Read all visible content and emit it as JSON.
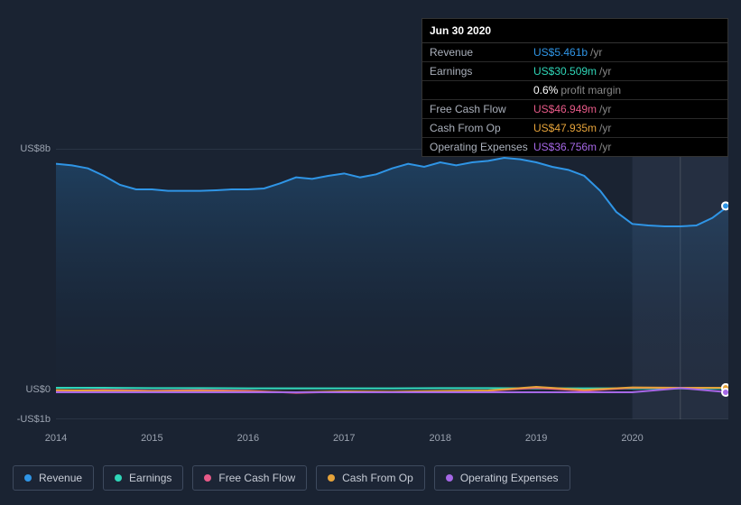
{
  "tooltip": {
    "date": "Jun 30 2020",
    "rows": [
      {
        "label": "Revenue",
        "value": "US$5.461b",
        "color": "#2f95e6",
        "suffix": "/yr"
      },
      {
        "label": "Earnings",
        "value": "US$30.509m",
        "color": "#2fd6b8",
        "suffix": "/yr"
      },
      {
        "label": "",
        "value": "0.6%",
        "color": "#ffffff",
        "suffix": "profit margin"
      },
      {
        "label": "Free Cash Flow",
        "value": "US$46.949m",
        "color": "#e85a88",
        "suffix": "/yr"
      },
      {
        "label": "Cash From Op",
        "value": "US$47.935m",
        "color": "#e6a33a",
        "suffix": "/yr"
      },
      {
        "label": "Operating Expenses",
        "value": "US$36.756m",
        "color": "#a567e6",
        "suffix": "/yr"
      }
    ]
  },
  "chart": {
    "type": "area-line",
    "background_color": "#1a2332",
    "grid_color": "#3a4555",
    "text_color": "#9ba3b0",
    "label_fontsize": 11,
    "x_years": [
      "2014",
      "2015",
      "2016",
      "2017",
      "2018",
      "2019",
      "2020"
    ],
    "x_range_months": 84,
    "y_axis": {
      "ticks": [
        {
          "label": "US$8b",
          "value": 8
        },
        {
          "label": "US$0",
          "value": 0
        },
        {
          "label": "-US$1b",
          "value": -1
        }
      ],
      "min": -1,
      "max": 8
    },
    "highlight_band": {
      "start_month": 72,
      "end_month": 84
    },
    "scrub_month": 78,
    "series": [
      {
        "name": "Revenue",
        "color": "#2f95e6",
        "area": true,
        "line_width": 2,
        "points": [
          [
            0,
            7.5
          ],
          [
            2,
            7.45
          ],
          [
            4,
            7.35
          ],
          [
            6,
            7.1
          ],
          [
            8,
            6.8
          ],
          [
            10,
            6.65
          ],
          [
            12,
            6.65
          ],
          [
            14,
            6.6
          ],
          [
            16,
            6.6
          ],
          [
            18,
            6.6
          ],
          [
            20,
            6.62
          ],
          [
            22,
            6.65
          ],
          [
            24,
            6.65
          ],
          [
            26,
            6.68
          ],
          [
            28,
            6.85
          ],
          [
            30,
            7.05
          ],
          [
            32,
            7.0
          ],
          [
            34,
            7.1
          ],
          [
            36,
            7.18
          ],
          [
            38,
            7.05
          ],
          [
            40,
            7.15
          ],
          [
            42,
            7.35
          ],
          [
            44,
            7.5
          ],
          [
            46,
            7.4
          ],
          [
            48,
            7.55
          ],
          [
            50,
            7.45
          ],
          [
            52,
            7.55
          ],
          [
            54,
            7.6
          ],
          [
            56,
            7.7
          ],
          [
            58,
            7.65
          ],
          [
            60,
            7.55
          ],
          [
            62,
            7.4
          ],
          [
            64,
            7.3
          ],
          [
            66,
            7.1
          ],
          [
            68,
            6.6
          ],
          [
            70,
            5.9
          ],
          [
            72,
            5.5
          ],
          [
            74,
            5.45
          ],
          [
            76,
            5.42
          ],
          [
            78,
            5.42
          ],
          [
            80,
            5.45
          ],
          [
            82,
            5.7
          ],
          [
            84,
            6.1
          ]
        ]
      },
      {
        "name": "Earnings",
        "color": "#2fd6b8",
        "area": false,
        "line_width": 2,
        "points": [
          [
            0,
            0.05
          ],
          [
            6,
            0.05
          ],
          [
            12,
            0.04
          ],
          [
            18,
            0.04
          ],
          [
            24,
            0.03
          ],
          [
            30,
            0.03
          ],
          [
            36,
            0.03
          ],
          [
            42,
            0.03
          ],
          [
            48,
            0.04
          ],
          [
            54,
            0.04
          ],
          [
            60,
            0.03
          ],
          [
            66,
            0.03
          ],
          [
            72,
            0.03
          ],
          [
            78,
            0.03
          ],
          [
            84,
            0.03
          ]
        ]
      },
      {
        "name": "Free Cash Flow",
        "color": "#e85a88",
        "area": false,
        "line_width": 2,
        "points": [
          [
            0,
            -0.05
          ],
          [
            6,
            -0.02
          ],
          [
            12,
            -0.05
          ],
          [
            18,
            -0.03
          ],
          [
            24,
            -0.05
          ],
          [
            30,
            -0.12
          ],
          [
            36,
            -0.08
          ],
          [
            42,
            -0.1
          ],
          [
            48,
            -0.08
          ],
          [
            54,
            -0.05
          ],
          [
            60,
            0.05
          ],
          [
            66,
            -0.05
          ],
          [
            72,
            0.05
          ],
          [
            78,
            0.05
          ],
          [
            84,
            0.05
          ]
        ]
      },
      {
        "name": "Cash From Op",
        "color": "#e6a33a",
        "area": false,
        "line_width": 2,
        "points": [
          [
            0,
            -0.03
          ],
          [
            6,
            -0.05
          ],
          [
            12,
            -0.07
          ],
          [
            18,
            -0.06
          ],
          [
            24,
            -0.08
          ],
          [
            30,
            -0.1
          ],
          [
            36,
            -0.07
          ],
          [
            42,
            -0.08
          ],
          [
            48,
            -0.06
          ],
          [
            54,
            -0.04
          ],
          [
            60,
            0.08
          ],
          [
            66,
            -0.02
          ],
          [
            72,
            0.06
          ],
          [
            78,
            0.05
          ],
          [
            84,
            0.05
          ]
        ]
      },
      {
        "name": "Operating Expenses",
        "color": "#a567e6",
        "area": false,
        "line_width": 2,
        "points": [
          [
            0,
            -0.1
          ],
          [
            6,
            -0.1
          ],
          [
            12,
            -0.1
          ],
          [
            18,
            -0.1
          ],
          [
            24,
            -0.1
          ],
          [
            30,
            -0.1
          ],
          [
            36,
            -0.1
          ],
          [
            42,
            -0.1
          ],
          [
            48,
            -0.1
          ],
          [
            54,
            -0.1
          ],
          [
            60,
            -0.1
          ],
          [
            66,
            -0.1
          ],
          [
            72,
            -0.1
          ],
          [
            78,
            0.04
          ],
          [
            84,
            -0.1
          ]
        ]
      }
    ]
  },
  "legend": [
    {
      "label": "Revenue",
      "color": "#2f95e6"
    },
    {
      "label": "Earnings",
      "color": "#2fd6b8"
    },
    {
      "label": "Free Cash Flow",
      "color": "#e85a88"
    },
    {
      "label": "Cash From Op",
      "color": "#e6a33a"
    },
    {
      "label": "Operating Expenses",
      "color": "#a567e6"
    }
  ]
}
